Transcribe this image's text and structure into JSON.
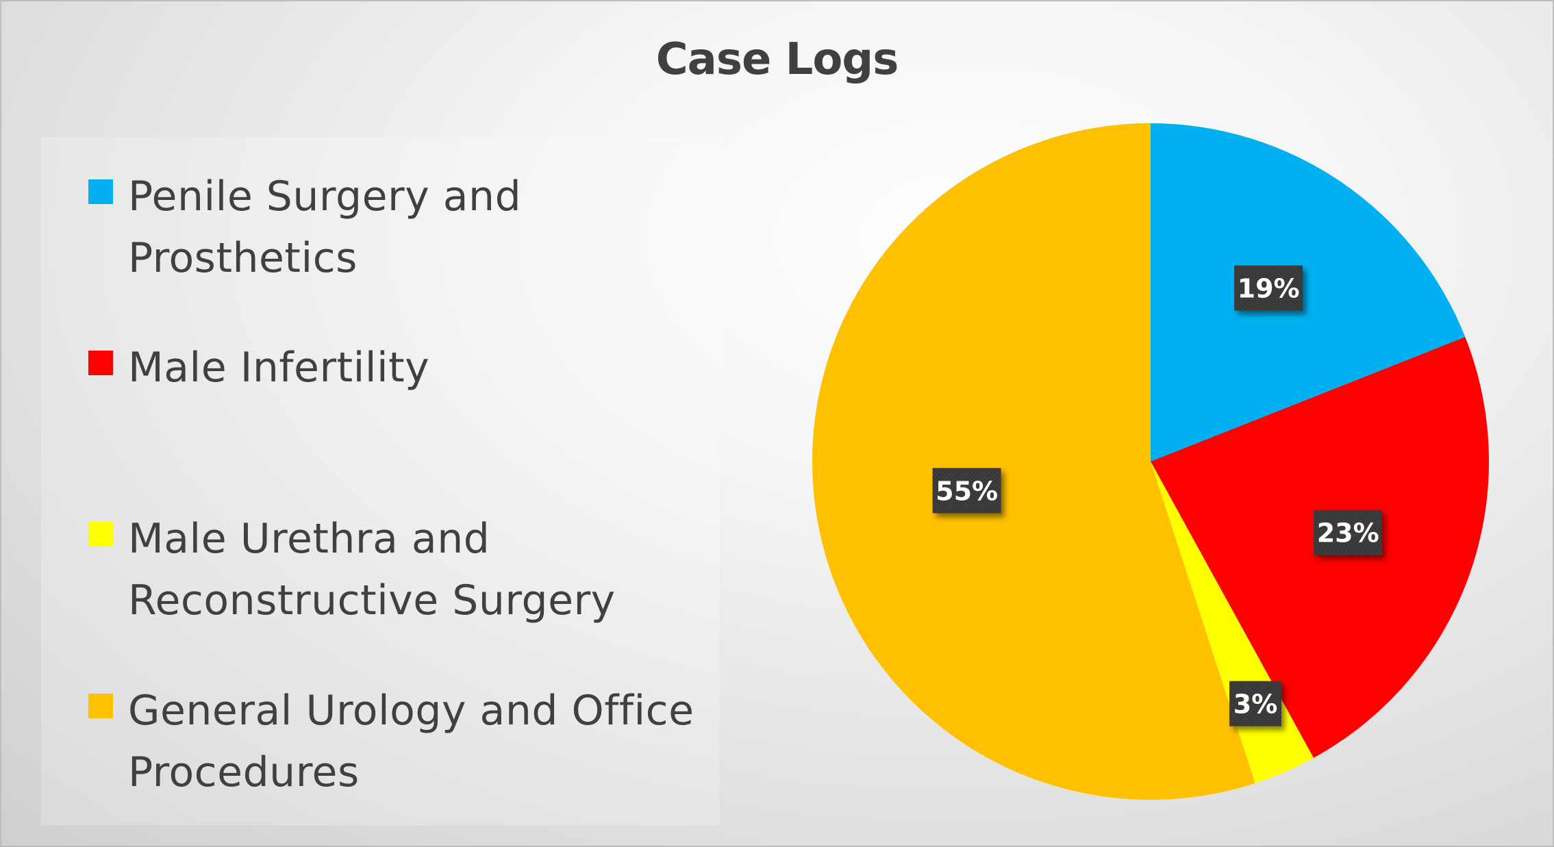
{
  "chart_data": {
    "type": "pie",
    "title": "Case Logs",
    "categories": [
      "Penile Surgery and Prosthetics",
      "Male Infertility",
      "Male Urethra and Reconstructive Surgery",
      "General Urology and Office Procedures"
    ],
    "values": [
      19,
      23,
      3,
      55
    ],
    "labels": [
      "19%",
      "23%",
      "3%",
      "55%"
    ],
    "colors": [
      "#00B0F0",
      "#FF0000",
      "#FFFF00",
      "#FFC000"
    ],
    "legend_position": "left",
    "data_label_style": "dark boxes"
  }
}
